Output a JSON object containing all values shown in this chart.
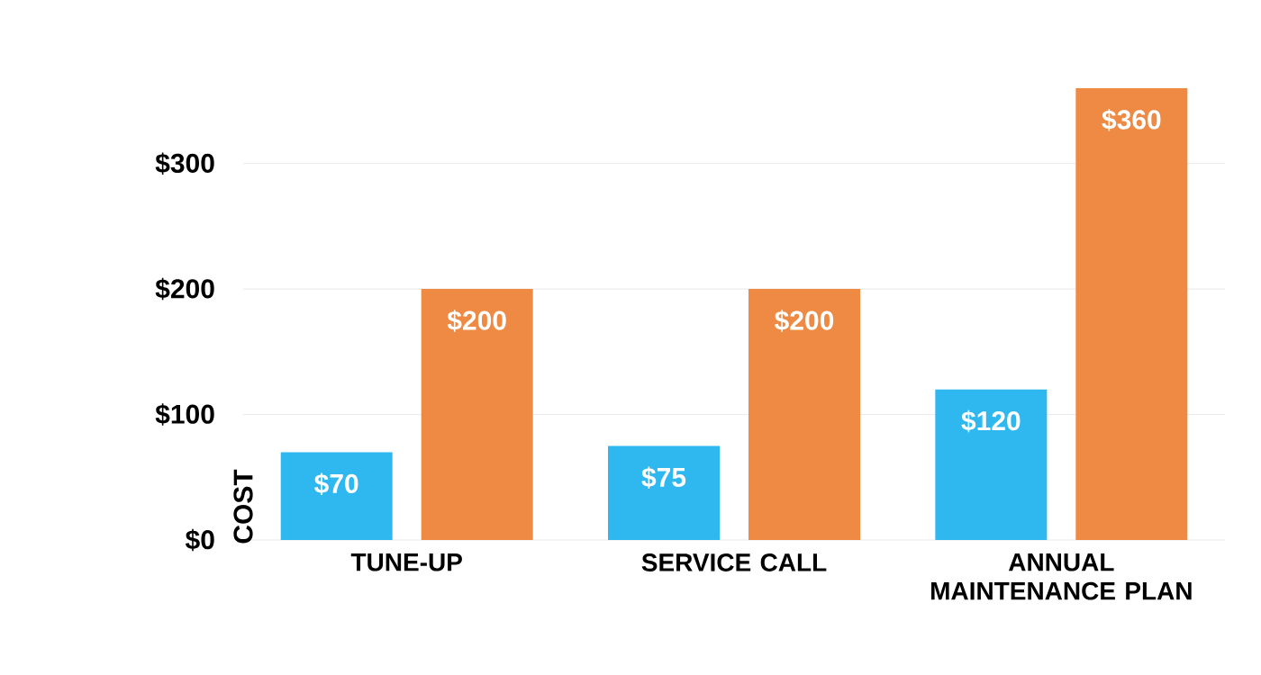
{
  "chart_data": {
    "type": "bar",
    "ylabel": "COST",
    "categories": [
      "TUNE-UP",
      "SERVICE CALL",
      "ANNUAL MAINTENANCE PLAN"
    ],
    "series": [
      {
        "color": "#2fb8f0",
        "values": [
          70,
          75,
          120
        ],
        "value_labels": [
          "$70",
          "$75",
          "$120"
        ]
      },
      {
        "color": "#ee8a44",
        "values": [
          200,
          200,
          360
        ],
        "value_labels": [
          "$200",
          "$200",
          "$360"
        ]
      }
    ],
    "ylim": [
      0,
      360
    ],
    "yticks": [
      {
        "value": 0,
        "label": "$0"
      },
      {
        "value": 100,
        "label": "$100"
      },
      {
        "value": 200,
        "label": "$200"
      },
      {
        "value": 300,
        "label": "$300"
      }
    ],
    "grid": "y"
  }
}
